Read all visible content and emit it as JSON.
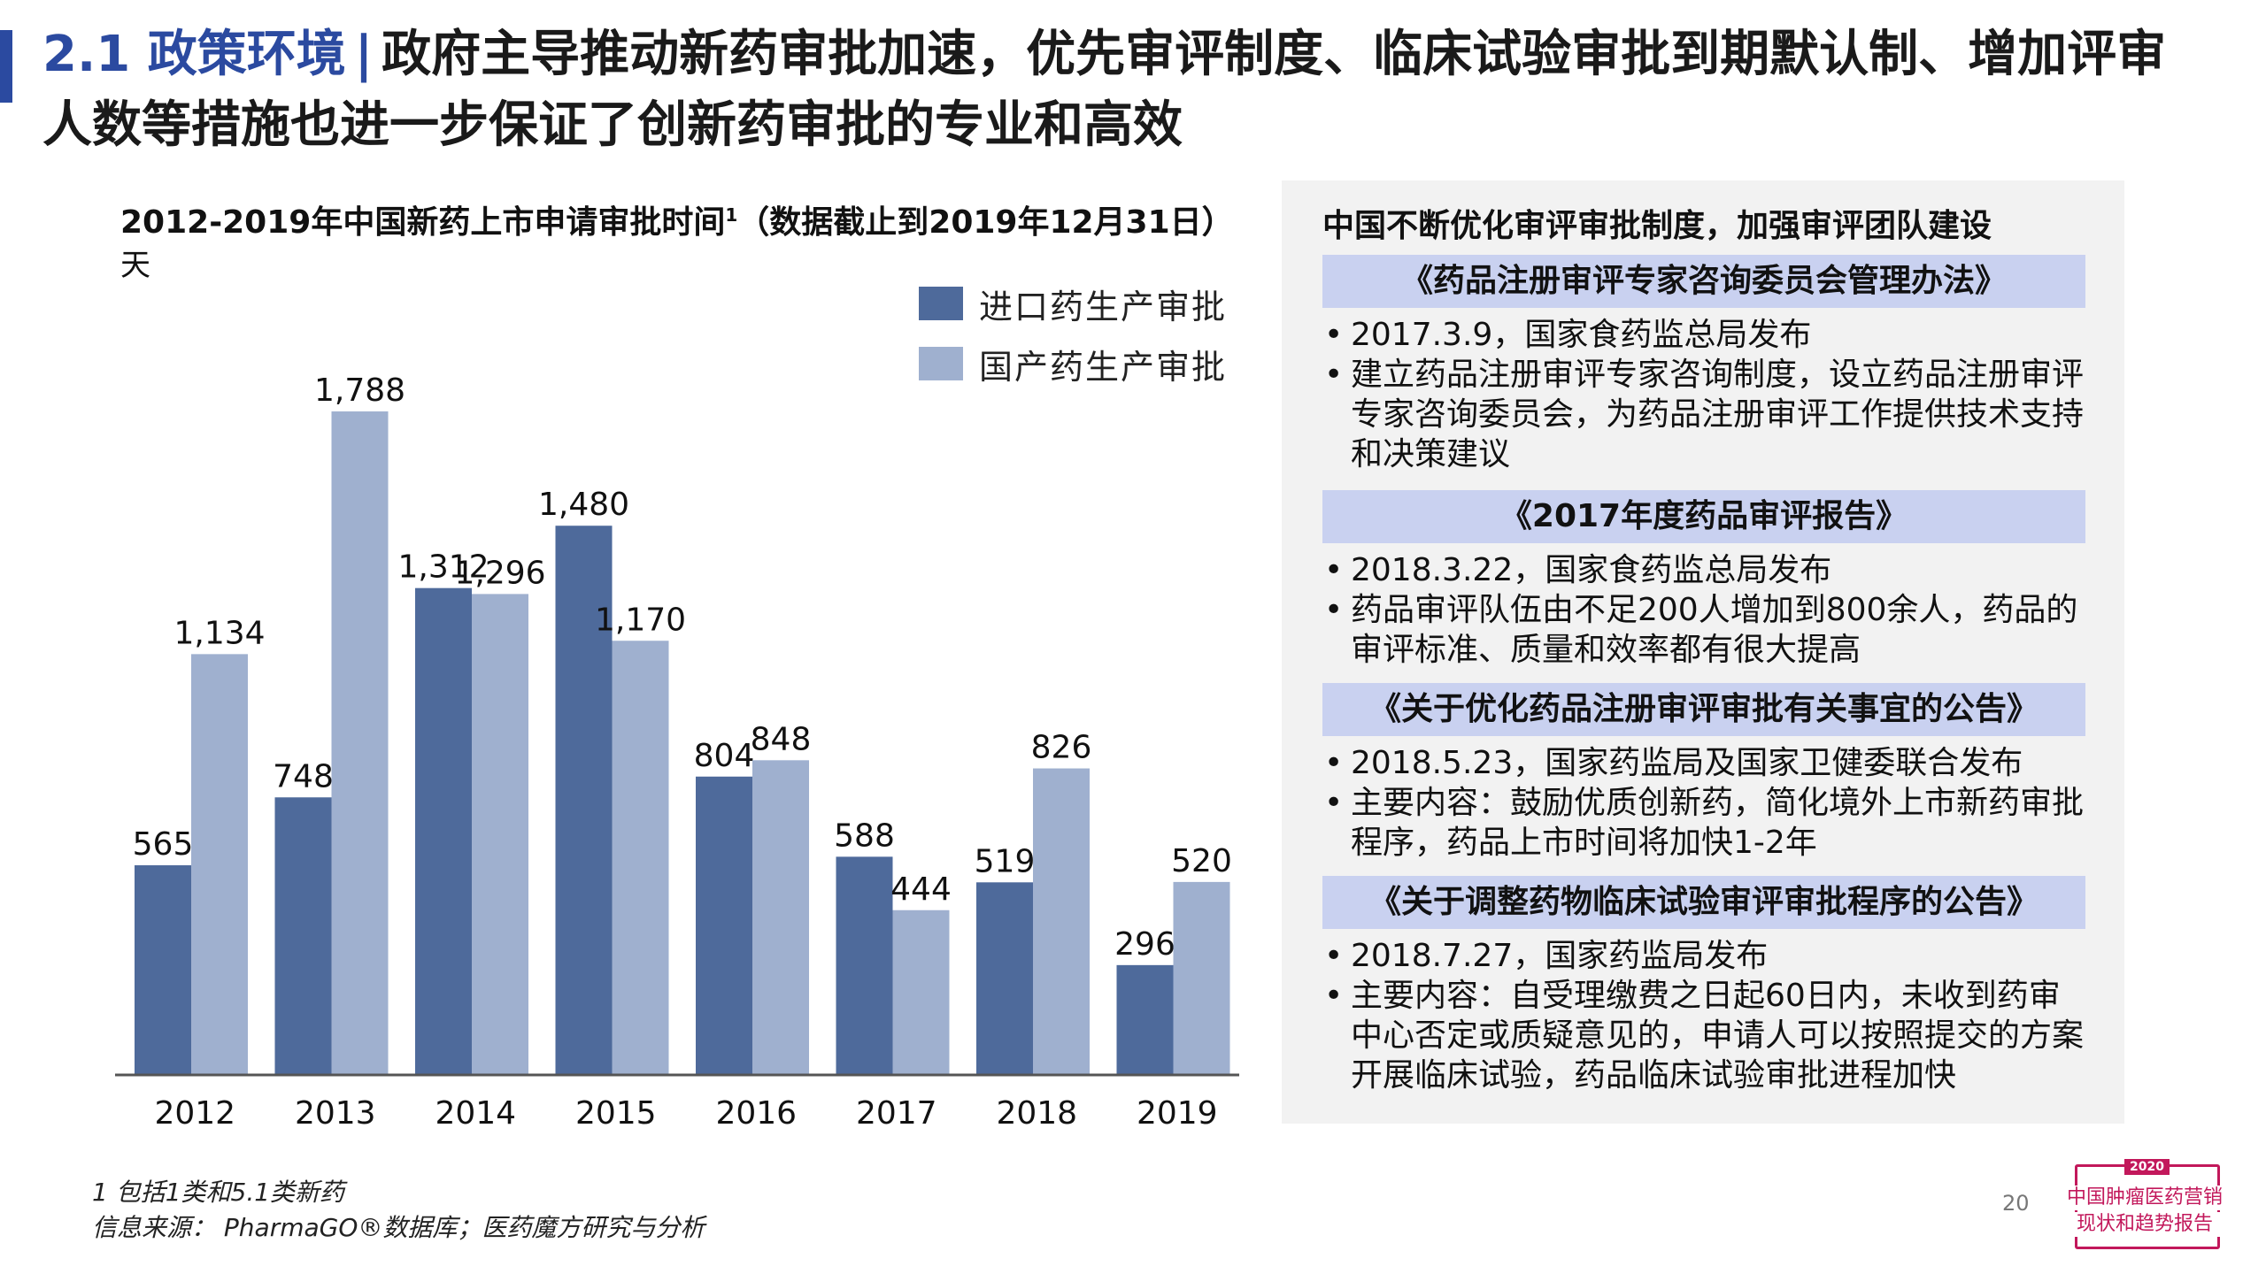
{
  "header": {
    "section": "2.1 政策环境",
    "separator": "|",
    "title": "政府主导推动新药审批加速，优先审评制度、临床试验审批到期默认制、增加评审人数等措施也进一步保证了创新药审批的专业和高效"
  },
  "chart_data": {
    "type": "bar",
    "title": "2012-2019年中国新药上市申请审批时间",
    "title_sup": "1",
    "title_suffix": "（数据截止到2019年12月31日）",
    "ylabel": "天",
    "categories": [
      "2012",
      "2013",
      "2014",
      "2015",
      "2016",
      "2017",
      "2018",
      "2019"
    ],
    "series": [
      {
        "name": "进口药生产审批",
        "color": "#4e6a9b",
        "values": [
          565,
          748,
          1312,
          1480,
          804,
          588,
          519,
          296
        ],
        "labels": [
          "565",
          "748",
          "1,312",
          "1,480",
          "804",
          "588",
          "519",
          "296"
        ]
      },
      {
        "name": "国产药生产审批",
        "color": "#9fb0cf",
        "values": [
          1134,
          1788,
          1296,
          1170,
          848,
          444,
          826,
          520
        ],
        "labels": [
          "1,134",
          "1,788",
          "1,296",
          "1,170",
          "848",
          "444",
          "826",
          "520"
        ]
      }
    ],
    "ylim": [
      0,
      1800
    ],
    "grid": false,
    "legend": "top-right"
  },
  "panel": {
    "title": "中国不断优化审评审批制度，加强审评团队建设",
    "policies": [
      {
        "header": "《药品注册审评专家咨询委员会管理办法》",
        "bullets": [
          "2017.3.9，国家食药监总局发布",
          "建立药品注册审评专家咨询制度，设立药品注册审评专家咨询委员会，为药品注册审评工作提供技术支持和决策建议"
        ]
      },
      {
        "header": "《2017年度药品审评报告》",
        "bullets": [
          "2018.3.22，国家食药监总局发布",
          "药品审评队伍由不足200人增加到800余人，药品的审评标准、质量和效率都有很大提高"
        ]
      },
      {
        "header": "《关于优化药品注册审评审批有关事宜的公告》",
        "bullets": [
          "2018.5.23，国家药监局及国家卫健委联合发布",
          "主要内容：鼓励优质创新药，简化境外上市新药审批程序，药品上市时间将加快1-2年"
        ]
      },
      {
        "header": "《关于调整药物临床试验审评审批程序的公告》",
        "bullets": [
          "2018.7.27，国家药监局发布",
          "主要内容：自受理缴费之日起60日内，未收到药审中心否定或质疑意见的，申请人可以按照提交的方案开展临床试验，药品临床试验审批进程加快"
        ]
      }
    ]
  },
  "footnote": {
    "note": "1 包括1类和5.1类新药",
    "source": "信息来源：  PharmaGO®数据库；医药魔方研究与分析"
  },
  "page_number": "20",
  "logo": {
    "year": "2020",
    "line1": "中国肿瘤医药营销",
    "line2": "现状和趋势报告"
  },
  "colors": {
    "accent": "#2b4aa0",
    "import": "#4e6a9b",
    "domestic": "#9fb0cf",
    "panel_header": "#c9d1f0",
    "logo": "#c2185b"
  }
}
